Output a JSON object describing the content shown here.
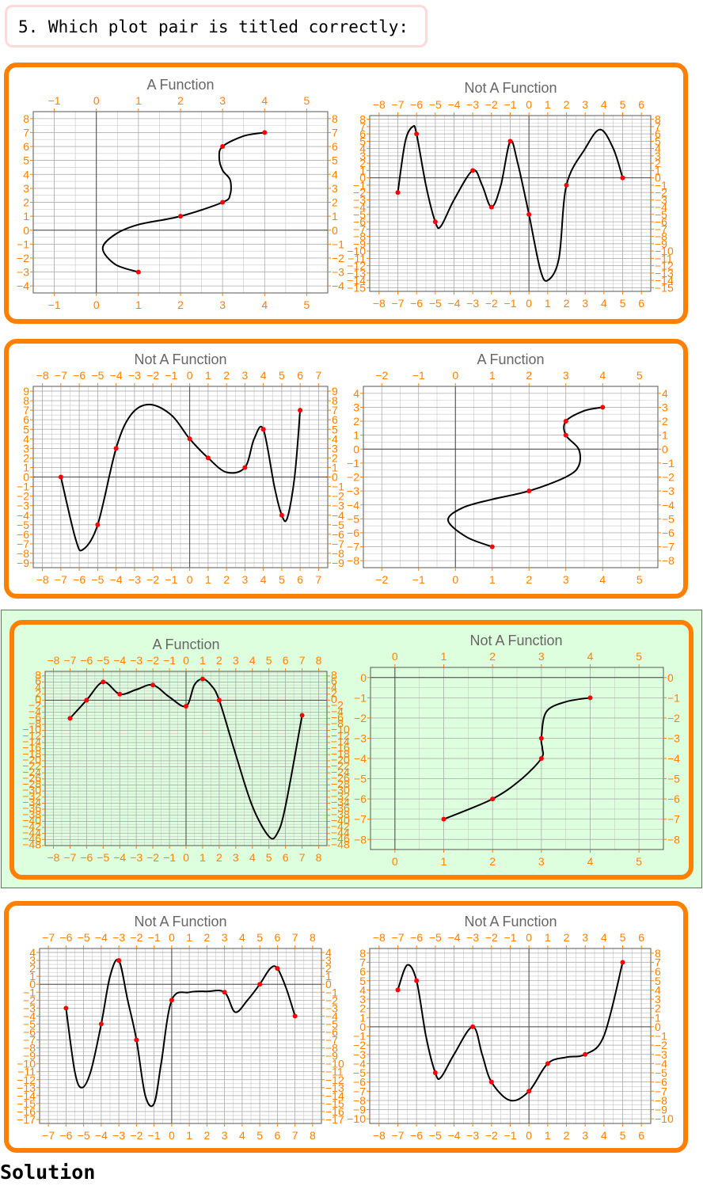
{
  "question": {
    "text": "5. Which plot pair is titled correctly:"
  },
  "solution_label": "Solution",
  "colors": {
    "panel_border": "#ff8000",
    "highlight_bg": "#ddffdd",
    "question_border": "#ffd9d9",
    "tick_label": "#ff8000",
    "curve": "#000000",
    "point": "#ff0000",
    "title": "#666666"
  },
  "pairs": [
    {
      "id": "pair-1",
      "selected": false,
      "plots": [
        {
          "id": "p1a",
          "title": "A Function",
          "xlim": [
            -1.5,
            5.5
          ],
          "ylim": [
            -4.5,
            8.5
          ],
          "xticks": [
            -1,
            0,
            1,
            2,
            3,
            4,
            5
          ],
          "yticks": [
            -4,
            -3,
            -2,
            -1,
            0,
            1,
            2,
            3,
            4,
            5,
            6,
            7,
            8
          ],
          "points": [
            [
              1,
              -3
            ],
            [
              2,
              1
            ],
            [
              3,
              2
            ],
            [
              3,
              6
            ],
            [
              4,
              7
            ]
          ],
          "curve": [
            [
              1,
              -3
            ],
            [
              0.45,
              -2.45
            ],
            [
              0.15,
              -1.3
            ],
            [
              0.45,
              -0.3
            ],
            [
              1,
              0.4
            ],
            [
              2,
              1
            ],
            [
              3,
              2
            ],
            [
              3.18,
              2.55
            ],
            [
              3.18,
              3.6
            ],
            [
              3,
              4.3
            ],
            [
              2.92,
              5.2
            ],
            [
              3,
              6
            ],
            [
              3.5,
              6.75
            ],
            [
              4,
              7
            ]
          ]
        },
        {
          "id": "p1b",
          "title": "Not A Function",
          "xlim": [
            -8.5,
            6.5
          ],
          "ylim": [
            -15.5,
            8.5
          ],
          "xticks": [
            -8,
            -7,
            -6,
            -5,
            -4,
            -3,
            -2,
            -1,
            0,
            1,
            2,
            3,
            4,
            5,
            6
          ],
          "yticks": [
            -15,
            -14,
            -13,
            -12,
            -11,
            -10,
            -9,
            -8,
            -7,
            -6,
            -5,
            -4,
            -3,
            -2,
            -1,
            0,
            1,
            2,
            3,
            4,
            5,
            6,
            7,
            8
          ],
          "points": [
            [
              -7,
              -2
            ],
            [
              -6,
              6
            ],
            [
              -5,
              -6
            ],
            [
              -3,
              1
            ],
            [
              -2,
              -4
            ],
            [
              -1,
              5
            ],
            [
              0,
              -5
            ],
            [
              2,
              -1
            ],
            [
              5,
              0
            ]
          ],
          "curve": [
            [
              -7,
              -2
            ],
            [
              -6.6,
              5
            ],
            [
              -6.2,
              7
            ],
            [
              -6,
              6
            ],
            [
              -5.5,
              -1
            ],
            [
              -5,
              -6
            ],
            [
              -4.7,
              -6.6
            ],
            [
              -4,
              -3
            ],
            [
              -3,
              1
            ],
            [
              -2.5,
              -1
            ],
            [
              -2,
              -4
            ],
            [
              -1.5,
              -1
            ],
            [
              -1,
              5
            ],
            [
              -0.6,
              2
            ],
            [
              0,
              -5
            ],
            [
              0.6,
              -12.5
            ],
            [
              1,
              -14
            ],
            [
              1.6,
              -11
            ],
            [
              2,
              -1
            ],
            [
              3,
              4
            ],
            [
              3.8,
              6.6
            ],
            [
              4.5,
              4
            ],
            [
              5,
              0
            ]
          ]
        }
      ]
    },
    {
      "id": "pair-2",
      "selected": false,
      "plots": [
        {
          "id": "p2a",
          "title": "Not A Function",
          "xlim": [
            -8.5,
            7.5
          ],
          "ylim": [
            -9.5,
            9.5
          ],
          "xticks": [
            -8,
            -7,
            -6,
            -5,
            -4,
            -3,
            -2,
            -1,
            0,
            1,
            2,
            3,
            4,
            5,
            6,
            7
          ],
          "yticks": [
            -9,
            -8,
            -7,
            -6,
            -5,
            -4,
            -3,
            -2,
            -1,
            0,
            1,
            2,
            3,
            4,
            5,
            6,
            7,
            8,
            9
          ],
          "points": [
            [
              -7,
              0
            ],
            [
              -5,
              -5
            ],
            [
              -4,
              3
            ],
            [
              0,
              4
            ],
            [
              1,
              2
            ],
            [
              3,
              1
            ],
            [
              4,
              5
            ],
            [
              5,
              -4
            ],
            [
              6,
              7
            ]
          ],
          "curve": [
            [
              -7,
              0
            ],
            [
              -6.2,
              -6.5
            ],
            [
              -5.8,
              -7.6
            ],
            [
              -5,
              -5
            ],
            [
              -4,
              3
            ],
            [
              -3.2,
              6.5
            ],
            [
              -2.2,
              7.6
            ],
            [
              -1,
              6.5
            ],
            [
              0,
              4
            ],
            [
              1,
              2
            ],
            [
              2,
              0.5
            ],
            [
              3,
              1
            ],
            [
              3.5,
              4
            ],
            [
              4,
              5
            ],
            [
              4.6,
              -1
            ],
            [
              5,
              -4
            ],
            [
              5.3,
              -4.3
            ],
            [
              5.7,
              0
            ],
            [
              6,
              7
            ]
          ]
        },
        {
          "id": "p2b",
          "title": "A Function",
          "xlim": [
            -2.5,
            5.5
          ],
          "ylim": [
            -8.5,
            4.5
          ],
          "xticks": [
            -2,
            -1,
            0,
            1,
            2,
            3,
            4,
            5
          ],
          "yticks": [
            -8,
            -7,
            -6,
            -5,
            -4,
            -3,
            -2,
            -1,
            0,
            1,
            2,
            3,
            4
          ],
          "points": [
            [
              1,
              -7
            ],
            [
              2,
              -3
            ],
            [
              3,
              1
            ],
            [
              3,
              2
            ],
            [
              4,
              3
            ]
          ],
          "curve": [
            [
              1,
              -7
            ],
            [
              0.3,
              -6.3
            ],
            [
              -0.2,
              -5.1
            ],
            [
              0.2,
              -4.2
            ],
            [
              1,
              -3.6
            ],
            [
              2,
              -3
            ],
            [
              3,
              -2
            ],
            [
              3.35,
              -1.2
            ],
            [
              3.35,
              0
            ],
            [
              3,
              1
            ],
            [
              3,
              2
            ],
            [
              3.5,
              2.75
            ],
            [
              4,
              3
            ]
          ]
        }
      ]
    },
    {
      "id": "pair-3",
      "selected": true,
      "plots": [
        {
          "id": "p3a",
          "title": "A Function",
          "xlim": [
            -8.5,
            8.5
          ],
          "ylim": [
            -48,
            9.5
          ],
          "xticks": [
            -8,
            -7,
            -6,
            -5,
            -4,
            -3,
            -2,
            -1,
            0,
            1,
            2,
            3,
            4,
            5,
            6,
            7,
            8
          ],
          "yticks": [
            -48,
            -46,
            -44,
            -42,
            -40,
            -38,
            -36,
            -34,
            -32,
            -30,
            -28,
            -26,
            -24,
            -22,
            -20,
            -18,
            -16,
            -14,
            -12,
            -10,
            -8,
            -6,
            -4,
            -2,
            0,
            2,
            4,
            6,
            8
          ],
          "points": [
            [
              -7,
              -6
            ],
            [
              -6,
              0
            ],
            [
              -5,
              6
            ],
            [
              -4,
              2
            ],
            [
              -2,
              5
            ],
            [
              0,
              -2
            ],
            [
              1,
              7
            ],
            [
              2,
              0
            ],
            [
              7,
              -5
            ]
          ],
          "curve": [
            [
              -7,
              -6
            ],
            [
              -6,
              0
            ],
            [
              -5,
              6
            ],
            [
              -4,
              2
            ],
            [
              -3,
              3.5
            ],
            [
              -2,
              5
            ],
            [
              -1,
              1
            ],
            [
              0,
              -2
            ],
            [
              0.5,
              5
            ],
            [
              1,
              7
            ],
            [
              1.5,
              5
            ],
            [
              2,
              0
            ],
            [
              3,
              -18
            ],
            [
              4,
              -35
            ],
            [
              5,
              -45
            ],
            [
              5.5,
              -44
            ],
            [
              6,
              -35
            ],
            [
              7,
              -5
            ]
          ]
        },
        {
          "id": "p3b",
          "title": "Not A Function",
          "xlim": [
            -0.5,
            5.5
          ],
          "ylim": [
            -8.5,
            0.5
          ],
          "xticks": [
            0,
            1,
            2,
            3,
            4,
            5
          ],
          "yticks": [
            -8,
            -7,
            -6,
            -5,
            -4,
            -3,
            -2,
            -1,
            0
          ],
          "points": [
            [
              1,
              -7
            ],
            [
              2,
              -6
            ],
            [
              3,
              -4
            ],
            [
              3,
              -3
            ],
            [
              4,
              -1
            ]
          ],
          "curve": [
            [
              1,
              -7
            ],
            [
              2,
              -6
            ],
            [
              2.6,
              -5
            ],
            [
              3,
              -4
            ],
            [
              3.02,
              -3.5
            ],
            [
              3,
              -3
            ],
            [
              3.1,
              -1.7
            ],
            [
              3.5,
              -1.2
            ],
            [
              4,
              -1
            ]
          ]
        }
      ]
    },
    {
      "id": "pair-4",
      "selected": false,
      "plots": [
        {
          "id": "p4a",
          "title": "Not A Function",
          "xlim": [
            -7.5,
            8.5
          ],
          "ylim": [
            -17.5,
            4.5
          ],
          "xticks": [
            -7,
            -6,
            -5,
            -4,
            -3,
            -2,
            -1,
            0,
            1,
            2,
            3,
            4,
            5,
            6,
            7,
            8
          ],
          "yticks": [
            -17,
            -16,
            -15,
            -14,
            -13,
            -12,
            -11,
            -10,
            -9,
            -8,
            -7,
            -6,
            -5,
            -4,
            -3,
            -2,
            -1,
            0,
            1,
            2,
            3,
            4
          ],
          "points": [
            [
              -6,
              -3
            ],
            [
              -4,
              -5
            ],
            [
              -3,
              3
            ],
            [
              -2,
              -7
            ],
            [
              0,
              -2
            ],
            [
              3,
              -1
            ],
            [
              5,
              0
            ],
            [
              6,
              2
            ],
            [
              7,
              -4
            ]
          ],
          "curve": [
            [
              -6,
              -3
            ],
            [
              -5.5,
              -11
            ],
            [
              -5.1,
              -13
            ],
            [
              -4.6,
              -11
            ],
            [
              -4,
              -5
            ],
            [
              -3.5,
              1
            ],
            [
              -3,
              3
            ],
            [
              -2.5,
              -2
            ],
            [
              -2,
              -7
            ],
            [
              -1.5,
              -14
            ],
            [
              -1,
              -15
            ],
            [
              -0.6,
              -10
            ],
            [
              0,
              -2
            ],
            [
              1,
              -1
            ],
            [
              2,
              -0.9
            ],
            [
              3,
              -1
            ],
            [
              3.6,
              -3.5
            ],
            [
              4.3,
              -2
            ],
            [
              5,
              0
            ],
            [
              5.6,
              2
            ],
            [
              6,
              2
            ],
            [
              6.5,
              -0.5
            ],
            [
              7,
              -4
            ]
          ]
        },
        {
          "id": "p4b",
          "title": "Not A Function",
          "xlim": [
            -8.5,
            6.5
          ],
          "ylim": [
            -10.5,
            8.5
          ],
          "xticks": [
            -8,
            -7,
            -6,
            -5,
            -4,
            -3,
            -2,
            -1,
            0,
            1,
            2,
            3,
            4,
            5,
            6
          ],
          "yticks": [
            -10,
            -9,
            -8,
            -7,
            -6,
            -5,
            -4,
            -3,
            -2,
            -1,
            0,
            1,
            2,
            3,
            4,
            5,
            6,
            7,
            8
          ],
          "points": [
            [
              -7,
              4
            ],
            [
              -6,
              5
            ],
            [
              -5,
              -5
            ],
            [
              -3,
              0
            ],
            [
              -2,
              -6
            ],
            [
              0,
              -7
            ],
            [
              1,
              -4
            ],
            [
              3,
              -3
            ],
            [
              5,
              7
            ]
          ],
          "curve": [
            [
              -7,
              4
            ],
            [
              -6.5,
              6.7
            ],
            [
              -6,
              5
            ],
            [
              -5.5,
              -1
            ],
            [
              -5,
              -5
            ],
            [
              -4.7,
              -5.5
            ],
            [
              -4,
              -3
            ],
            [
              -3,
              0
            ],
            [
              -2.5,
              -3
            ],
            [
              -2,
              -6
            ],
            [
              -1,
              -8
            ],
            [
              0,
              -7
            ],
            [
              1,
              -4
            ],
            [
              2,
              -3.3
            ],
            [
              3,
              -3
            ],
            [
              4,
              -1
            ],
            [
              5,
              7
            ]
          ]
        }
      ]
    }
  ]
}
